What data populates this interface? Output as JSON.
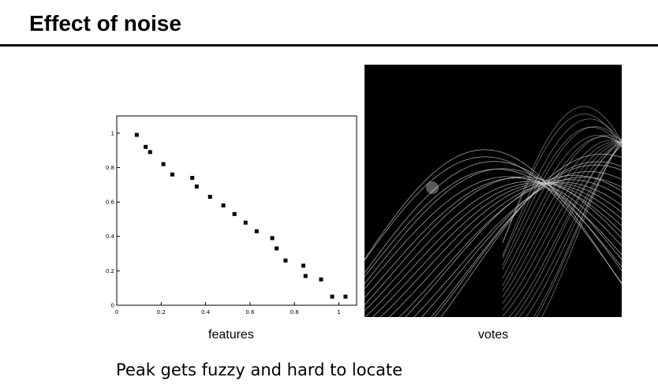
{
  "slide": {
    "title": "Effect of noise",
    "caption": "Peak gets fuzzy and hard to locate"
  },
  "panels": {
    "left_label": "features",
    "right_label": "votes"
  },
  "chart_data": [
    {
      "type": "scatter",
      "title": "",
      "xlabel": "",
      "ylabel": "",
      "xlim": [
        0,
        1.08
      ],
      "ylim": [
        0,
        1.1
      ],
      "xticks": [
        "0",
        "0.2",
        "0.4",
        "0.6",
        "0.8",
        "1"
      ],
      "yticks": [
        "0",
        "0.2",
        "0.4",
        "0.6",
        "0.8",
        "1"
      ],
      "grid": false,
      "x": [
        0.09,
        0.13,
        0.15,
        0.21,
        0.25,
        0.34,
        0.36,
        0.42,
        0.48,
        0.53,
        0.58,
        0.63,
        0.7,
        0.72,
        0.76,
        0.84,
        0.85,
        0.92,
        0.97,
        1.03
      ],
      "y": [
        0.99,
        0.92,
        0.89,
        0.82,
        0.76,
        0.74,
        0.69,
        0.63,
        0.58,
        0.53,
        0.48,
        0.43,
        0.39,
        0.33,
        0.26,
        0.23,
        0.17,
        0.15,
        0.05,
        0.05
      ]
    },
    {
      "type": "heatmap",
      "title": "",
      "xlabel": "",
      "ylabel": "",
      "grid": false,
      "background": "#000000"
    }
  ]
}
